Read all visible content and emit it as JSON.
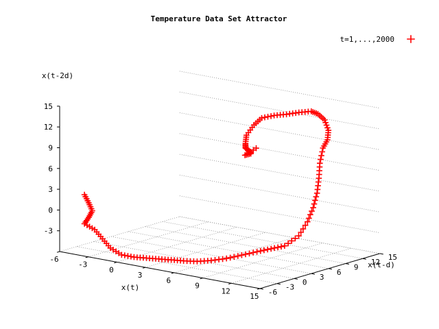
{
  "chart_data": {
    "type": "scatter",
    "title": "Temperature Data Set Attractor",
    "xlabel": "x(t)",
    "ylabel": "x(t-d)",
    "zlabel": "x(t-2d)",
    "xlim": [
      -6,
      15
    ],
    "ylim": [
      -6,
      15
    ],
    "zlim": [
      -6,
      15
    ],
    "x_ticks": [
      "-6",
      "-3",
      "0",
      "3",
      "6",
      "9",
      "12",
      "15"
    ],
    "y_ticks": [
      "-6",
      "-3",
      "0",
      "3",
      "6",
      "9",
      "12",
      "15"
    ],
    "z_ticks": [
      "-6",
      "-3",
      "0",
      "3",
      "6",
      "9",
      "12",
      "15"
    ],
    "grid": true,
    "legend_position": "top-right",
    "marker": "+",
    "series": [
      {
        "name": "t=1,...,2000",
        "color": "#ff0000",
        "marker": "+",
        "points": [
          [
            -5.5,
            -2.5,
            1.5
          ],
          [
            -5.0,
            -2.6,
            0.5
          ],
          [
            -4.5,
            -2.8,
            -0.5
          ],
          [
            -4.8,
            -2.9,
            -1.5
          ],
          [
            -5.2,
            -3.0,
            -2.5
          ],
          [
            -4.0,
            -3.2,
            -3.0
          ],
          [
            -3.0,
            -3.5,
            -4.0
          ],
          [
            -2.0,
            -3.8,
            -5.0
          ],
          [
            -1.0,
            -3.5,
            -5.8
          ],
          [
            0.0,
            -3.0,
            -6.0
          ],
          [
            1.0,
            -2.5,
            -6.0
          ],
          [
            2.0,
            -2.0,
            -6.0
          ],
          [
            3.0,
            -1.5,
            -6.0
          ],
          [
            4.0,
            -1.0,
            -6.0
          ],
          [
            5.0,
            -0.3,
            -6.0
          ],
          [
            6.0,
            0.5,
            -5.8
          ],
          [
            7.0,
            1.5,
            -5.5
          ],
          [
            8.0,
            2.5,
            -5.0
          ],
          [
            9.0,
            3.5,
            -4.5
          ],
          [
            10.0,
            4.3,
            -4.0
          ],
          [
            11.0,
            5.0,
            -3.5
          ],
          [
            12.0,
            5.8,
            -2.0
          ],
          [
            12.5,
            6.5,
            0.0
          ],
          [
            12.8,
            7.0,
            2.0
          ],
          [
            12.9,
            7.5,
            4.0
          ],
          [
            12.8,
            8.0,
            6.0
          ],
          [
            12.6,
            8.5,
            8.0
          ],
          [
            12.5,
            9.2,
            10.0
          ],
          [
            12.5,
            10.0,
            11.0
          ],
          [
            12.0,
            11.0,
            12.0
          ],
          [
            11.0,
            12.0,
            13.0
          ],
          [
            10.0,
            12.5,
            13.5
          ],
          [
            9.0,
            13.0,
            13.5
          ],
          [
            8.0,
            12.5,
            13.2
          ],
          [
            7.0,
            12.0,
            12.8
          ],
          [
            6.0,
            11.5,
            12.5
          ],
          [
            5.0,
            11.0,
            12.0
          ],
          [
            4.5,
            10.5,
            11.0
          ],
          [
            4.0,
            10.0,
            9.5
          ],
          [
            4.2,
            9.5,
            8.5
          ],
          [
            4.5,
            9.0,
            8.0
          ],
          [
            5.0,
            8.8,
            7.8
          ],
          [
            5.3,
            8.6,
            7.5
          ],
          [
            4.8,
            8.4,
            7.2
          ],
          [
            5.5,
            9.2,
            8.2
          ]
        ]
      }
    ]
  }
}
